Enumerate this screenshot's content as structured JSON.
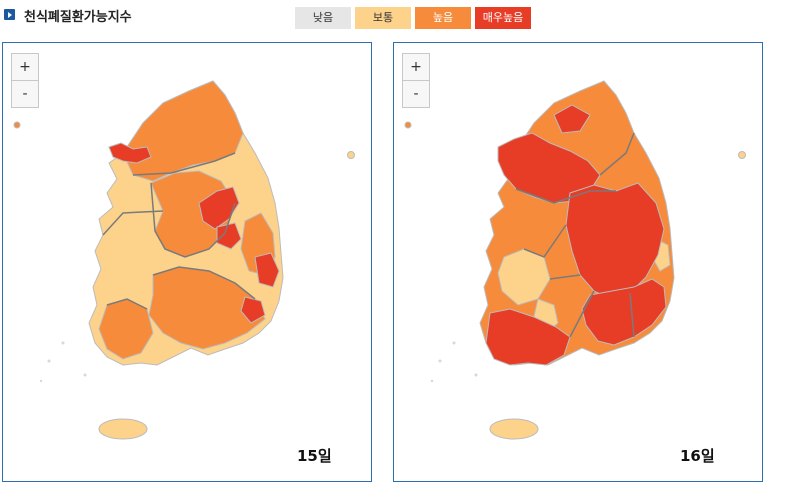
{
  "title": "천식폐질환가능지수",
  "legend": [
    {
      "label": "낮음",
      "color": "#e6e6e6"
    },
    {
      "label": "보통",
      "color": "#fdd38c"
    },
    {
      "label": "높음",
      "color": "#f68b3c"
    },
    {
      "label": "매우높음",
      "color": "#e73d27"
    }
  ],
  "maps": [
    {
      "day_label": "15일"
    },
    {
      "day_label": "16일"
    }
  ],
  "zoom": {
    "in_label": "+",
    "out_label": "-"
  },
  "colors": {
    "panel_border": "#2d6db0",
    "region_border": "#bbbbbb",
    "province_border": "#7a7a7a"
  }
}
